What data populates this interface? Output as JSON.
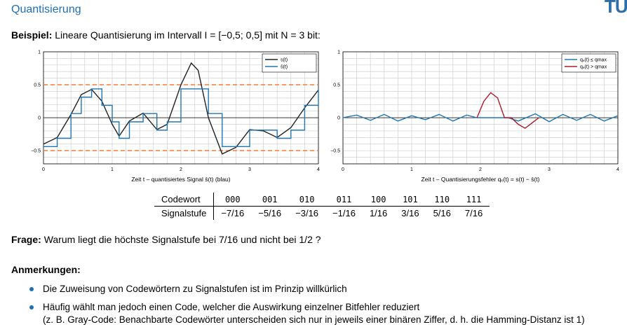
{
  "header": {
    "title": "Quantisierung",
    "logo": "TUI"
  },
  "example": {
    "label": "Beispiel:",
    "text": "Lineare Quantisierung im Intervall I = [−0,5; 0,5] mit N = 3 bit:"
  },
  "chart_data": [
    {
      "type": "line",
      "xlabel": "Zeit t – quantisiertes Signal s̄(t) (blau)",
      "xlim": [
        0,
        4
      ],
      "ylim": [
        -0.7,
        1
      ],
      "xticks": [
        "0",
        "1",
        "2",
        "3",
        "4"
      ],
      "yticks": [
        "−0.5",
        "0",
        "0.5",
        "1"
      ],
      "legend": [
        "s(t)",
        "s̄(t)"
      ],
      "legend_position": "top-right",
      "threshold_lines": [
        0.5,
        -0.5
      ],
      "series": [
        {
          "name": "s(t)",
          "color": "#222222",
          "x": [
            0,
            0.2,
            0.4,
            0.55,
            0.7,
            0.85,
            1.0,
            1.1,
            1.25,
            1.45,
            1.65,
            1.8,
            2.0,
            2.15,
            2.25,
            2.4,
            2.6,
            2.8,
            3.0,
            3.2,
            3.4,
            3.6,
            3.8,
            4.0
          ],
          "y": [
            -0.4,
            -0.3,
            0.05,
            0.35,
            0.43,
            0.25,
            -0.1,
            -0.28,
            -0.05,
            0.07,
            -0.18,
            -0.1,
            0.5,
            0.83,
            0.72,
            0.0,
            -0.55,
            -0.45,
            -0.18,
            -0.2,
            -0.3,
            -0.15,
            0.15,
            0.42
          ]
        },
        {
          "name": "s̄(t)",
          "color": "#1f77b4",
          "x": [
            0,
            0.2,
            0.4,
            0.55,
            0.7,
            0.85,
            1.0,
            1.1,
            1.25,
            1.45,
            1.65,
            1.8,
            2.0,
            2.15,
            2.25,
            2.4,
            2.6,
            2.8,
            3.0,
            3.2,
            3.4,
            3.6,
            3.8,
            4.0
          ],
          "y": [
            -0.4375,
            -0.3125,
            0.0625,
            0.3125,
            0.4375,
            0.1875,
            -0.0625,
            -0.3125,
            -0.0625,
            0.0625,
            -0.1875,
            -0.0625,
            0.4375,
            0.4375,
            0.4375,
            0.0625,
            -0.4375,
            -0.4375,
            -0.1875,
            -0.1875,
            -0.3125,
            -0.1875,
            0.1875,
            0.4375
          ]
        }
      ]
    },
    {
      "type": "line",
      "xlabel": "Zeit t – Quantisierungsfehler qₑ(t) = s(t) − s̄(t)",
      "xlim": [
        0,
        4
      ],
      "ylim": [
        -0.7,
        1
      ],
      "xticks": [
        "0",
        "1",
        "2",
        "3",
        "4"
      ],
      "yticks": [
        "−0.5",
        "0",
        "0.5",
        "1"
      ],
      "legend": [
        "qₑ(t) ≤ qmax",
        "qₑ(t) > qmax"
      ],
      "legend_position": "top-right",
      "series": [
        {
          "name": "qₑ(t) ≤ qmax",
          "color": "#1f77b4",
          "x": [
            0,
            0.2,
            0.4,
            0.6,
            0.8,
            1.0,
            1.2,
            1.4,
            1.6,
            1.8,
            1.95,
            2.4,
            2.55,
            2.8,
            3.0,
            3.2,
            3.4,
            3.6,
            3.8,
            4.0
          ],
          "y": [
            0.0,
            0.04,
            -0.04,
            0.05,
            -0.05,
            0.03,
            -0.03,
            0.05,
            -0.05,
            0.04,
            0.0,
            0.0,
            -0.05,
            0.06,
            -0.06,
            0.05,
            -0.04,
            0.05,
            -0.05,
            0.03
          ]
        },
        {
          "name": "qₑ(t) > qmax",
          "color": "#b2182b",
          "x": [
            1.95,
            2.05,
            2.15,
            2.25,
            2.35,
            2.45,
            2.55,
            2.65,
            2.75,
            2.85
          ],
          "y": [
            0.0,
            0.25,
            0.38,
            0.3,
            0.0,
            0.0,
            -0.1,
            -0.16,
            -0.08,
            0.0
          ]
        }
      ]
    }
  ],
  "code_table": {
    "row1_label": "Codewort",
    "row2_label": "Signalstufe",
    "codewords": [
      "000",
      "001",
      "010",
      "011",
      "100",
      "101",
      "110",
      "111"
    ],
    "levels": [
      "−7/16",
      "−5/16",
      "−3/16",
      "−1/16",
      "1/16",
      "3/16",
      "5/16",
      "7/16"
    ]
  },
  "question": {
    "label": "Frage:",
    "text": "Warum liegt die höchste Signalstufe bei 7/16 und nicht bei 1/2 ?"
  },
  "notes": {
    "title": "Anmerkungen:",
    "items": [
      "Die Zuweisung von Codewörtern zu Signalstufen ist im Prinzip willkürlich",
      "Häufig wählt man jedoch einen Code, welcher die Auswirkung einzelner Bitfehler reduziert"
    ],
    "item2_sub": "(z. B. Gray-Code: Benachbarte Codewörter unterscheiden sich nur in jeweils einer binären Ziffer, d. h. die Hamming-Distanz ist 1)"
  }
}
